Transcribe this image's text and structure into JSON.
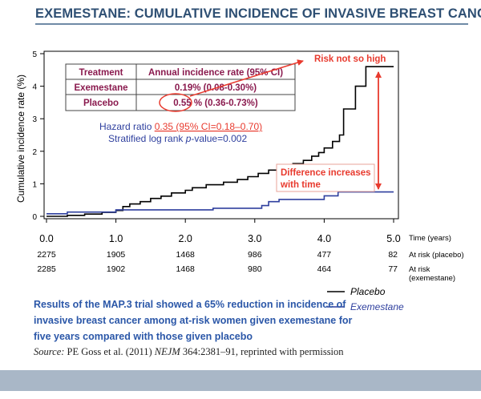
{
  "header": {
    "title": "EXEMESTANE: CUMULATIVE INCIDENCE OF INVASIVE BREAST CANCER"
  },
  "chart_data": {
    "type": "line",
    "ylabel": "Cumulative incidence rate (%)",
    "xlabel": "Time (years)",
    "xlim": [
      0,
      5
    ],
    "ylim": [
      0,
      5
    ],
    "x_ticks": [
      "0.0",
      "1.0",
      "2.0",
      "3.0",
      "4.0",
      "5.0"
    ],
    "y_ticks": [
      "0",
      "1",
      "2",
      "3",
      "4",
      "5"
    ],
    "grid": false,
    "legend_position": "bottom-right",
    "series": [
      {
        "name": "Placebo",
        "color": "#000000",
        "points": [
          [
            0,
            0
          ],
          [
            0.3,
            0
          ],
          [
            0.3,
            0.03
          ],
          [
            0.55,
            0.03
          ],
          [
            0.55,
            0.07
          ],
          [
            0.8,
            0.07
          ],
          [
            0.8,
            0.12
          ],
          [
            1.0,
            0.12
          ],
          [
            1.0,
            0.18
          ],
          [
            1.1,
            0.18
          ],
          [
            1.1,
            0.3
          ],
          [
            1.2,
            0.3
          ],
          [
            1.2,
            0.38
          ],
          [
            1.35,
            0.38
          ],
          [
            1.35,
            0.45
          ],
          [
            1.5,
            0.45
          ],
          [
            1.5,
            0.55
          ],
          [
            1.65,
            0.55
          ],
          [
            1.65,
            0.62
          ],
          [
            1.8,
            0.62
          ],
          [
            1.8,
            0.72
          ],
          [
            2.0,
            0.72
          ],
          [
            2.0,
            0.8
          ],
          [
            2.1,
            0.8
          ],
          [
            2.1,
            0.88
          ],
          [
            2.3,
            0.88
          ],
          [
            2.3,
            0.97
          ],
          [
            2.55,
            0.97
          ],
          [
            2.55,
            1.05
          ],
          [
            2.75,
            1.05
          ],
          [
            2.75,
            1.13
          ],
          [
            2.9,
            1.13
          ],
          [
            2.9,
            1.22
          ],
          [
            3.05,
            1.22
          ],
          [
            3.05,
            1.32
          ],
          [
            3.2,
            1.32
          ],
          [
            3.2,
            1.42
          ],
          [
            3.35,
            1.42
          ],
          [
            3.35,
            1.52
          ],
          [
            3.55,
            1.52
          ],
          [
            3.55,
            1.62
          ],
          [
            3.7,
            1.62
          ],
          [
            3.7,
            1.72
          ],
          [
            3.82,
            1.72
          ],
          [
            3.82,
            1.85
          ],
          [
            3.92,
            1.85
          ],
          [
            3.92,
            1.96
          ],
          [
            4.0,
            1.96
          ],
          [
            4.0,
            2.1
          ],
          [
            4.12,
            2.1
          ],
          [
            4.12,
            2.3
          ],
          [
            4.22,
            2.3
          ],
          [
            4.22,
            2.5
          ],
          [
            4.28,
            2.5
          ],
          [
            4.28,
            3.3
          ],
          [
            4.38,
            3.3
          ],
          [
            4.38,
            3.3
          ],
          [
            4.45,
            3.3
          ],
          [
            4.45,
            4.0
          ],
          [
            4.6,
            4.0
          ],
          [
            4.6,
            4.6
          ],
          [
            5.0,
            4.6
          ]
        ]
      },
      {
        "name": "Exemestane",
        "color": "#2e3f9e",
        "points": [
          [
            0,
            0.08
          ],
          [
            0.3,
            0.08
          ],
          [
            0.3,
            0.13
          ],
          [
            1.0,
            0.13
          ],
          [
            1.0,
            0.2
          ],
          [
            2.4,
            0.2
          ],
          [
            2.4,
            0.25
          ],
          [
            3.1,
            0.25
          ],
          [
            3.1,
            0.33
          ],
          [
            3.2,
            0.33
          ],
          [
            3.2,
            0.45
          ],
          [
            3.35,
            0.45
          ],
          [
            3.35,
            0.52
          ],
          [
            4.0,
            0.52
          ],
          [
            4.0,
            0.63
          ],
          [
            4.2,
            0.63
          ],
          [
            4.2,
            0.75
          ],
          [
            5.0,
            0.75
          ]
        ]
      }
    ],
    "table": {
      "headers": [
        "Treatment",
        "Annual incidence rate (95% CI)"
      ],
      "rows": [
        [
          "Exemestane",
          "0.19% (0.08-0.30%)"
        ],
        [
          "Placebo",
          "0.55 % (0.36-0.73%)"
        ]
      ]
    },
    "stats": {
      "hr_label": "Hazard ratio ",
      "hr_value": "0.35 (95% CI=0.18–0.70)",
      "logrank_prefix": "Stratified log rank  ",
      "logrank_p": "p",
      "logrank_suffix": "-value=0.002"
    },
    "annotations": {
      "risk": "Risk not so high",
      "difference_line1": "Difference increases",
      "difference_line2": "with time"
    },
    "at_risk": {
      "placebo": [
        "2275",
        "1905",
        "1468",
        "986",
        "477",
        "82"
      ],
      "exemestane": [
        "2285",
        "1902",
        "1468",
        "980",
        "464",
        "77"
      ],
      "placebo_label": "At risk (placebo)",
      "exemestane_label_line1": "At risk",
      "exemestane_label_line2": "(exemestane)"
    },
    "highlight_color": "#e83a2e"
  },
  "caption": "Results of the MAP.3 trial showed a 65% reduction in incidence of invasive breast cancer among at-risk women given exemestane for five years compared with those given placebo",
  "source": {
    "prefix": "Source:",
    "authors": " PE Goss et al. (2011) ",
    "journal": "NEJM",
    "rest": " 364:2381–91, reprinted with permission"
  }
}
